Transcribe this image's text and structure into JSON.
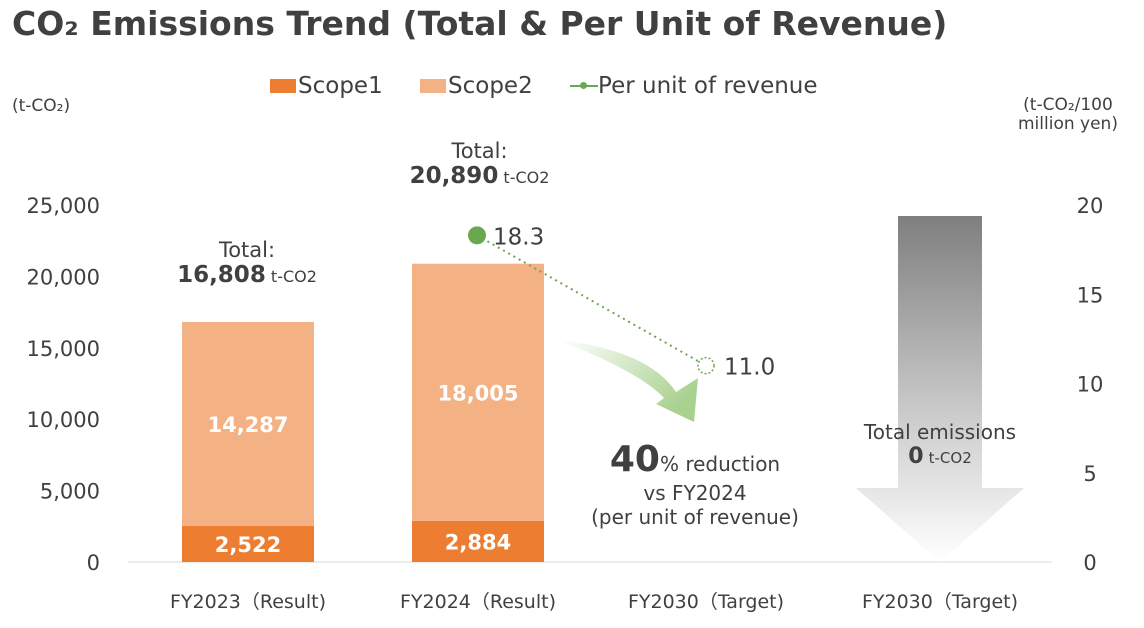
{
  "title": "CO₂ Emissions Trend (Total & Per Unit of Revenue)",
  "left_axis_unit": "(t-CO₂)",
  "right_axis_unit_line1": "(t-CO₂/100",
  "right_axis_unit_line2": "million yen)",
  "colors": {
    "scope1": "#ed7d31",
    "scope2": "#f4b183",
    "line": "#6aa84f",
    "text": "#404040"
  },
  "chart_data": {
    "type": "bar",
    "stacked": true,
    "categories": [
      "FY2023（Result)",
      "FY2024（Result)",
      "FY2030（Target)",
      "FY2030（Target)"
    ],
    "series": [
      {
        "name": "Scope1",
        "values": [
          2522,
          2884,
          null,
          null
        ],
        "labels": [
          "2,522",
          "2,884"
        ]
      },
      {
        "name": "Scope2",
        "values": [
          14287,
          18005,
          null,
          null
        ],
        "labels": [
          "14,287",
          "18,005"
        ]
      }
    ],
    "line_series": {
      "name": "Per unit of revenue",
      "axis": "right",
      "points": [
        {
          "category_index": 1,
          "value": 18.3,
          "label": "18.3"
        },
        {
          "category_index": 2,
          "value": 11.0,
          "label": "11.0"
        }
      ]
    },
    "left_axis": {
      "min": 0,
      "max": 25000,
      "ticks": [
        0,
        5000,
        10000,
        15000,
        20000,
        25000
      ],
      "tick_labels": [
        "0",
        "5,000",
        "10,000",
        "15,000",
        "20,000",
        "25,000"
      ]
    },
    "right_axis": {
      "min": 0,
      "max": 20,
      "ticks": [
        0,
        5,
        10,
        15,
        20
      ],
      "tick_labels": [
        "0",
        "5",
        "10",
        "15",
        "20"
      ]
    },
    "totals": [
      {
        "label": "Total:",
        "value": "16,808",
        "unit": "t-CO2"
      },
      {
        "label": "Total:",
        "value": "20,890",
        "unit": "t-CO2"
      }
    ],
    "reduction_note": {
      "percent": "40",
      "line1": "% reduction",
      "line2": "vs FY2024",
      "line3": "(per unit of revenue)"
    },
    "target_note": {
      "label": "Total emissions",
      "value": "0",
      "unit": "t-CO2"
    }
  },
  "legend": [
    {
      "name": "Scope1"
    },
    {
      "name": "Scope2"
    },
    {
      "name": "Per unit of revenue"
    }
  ]
}
